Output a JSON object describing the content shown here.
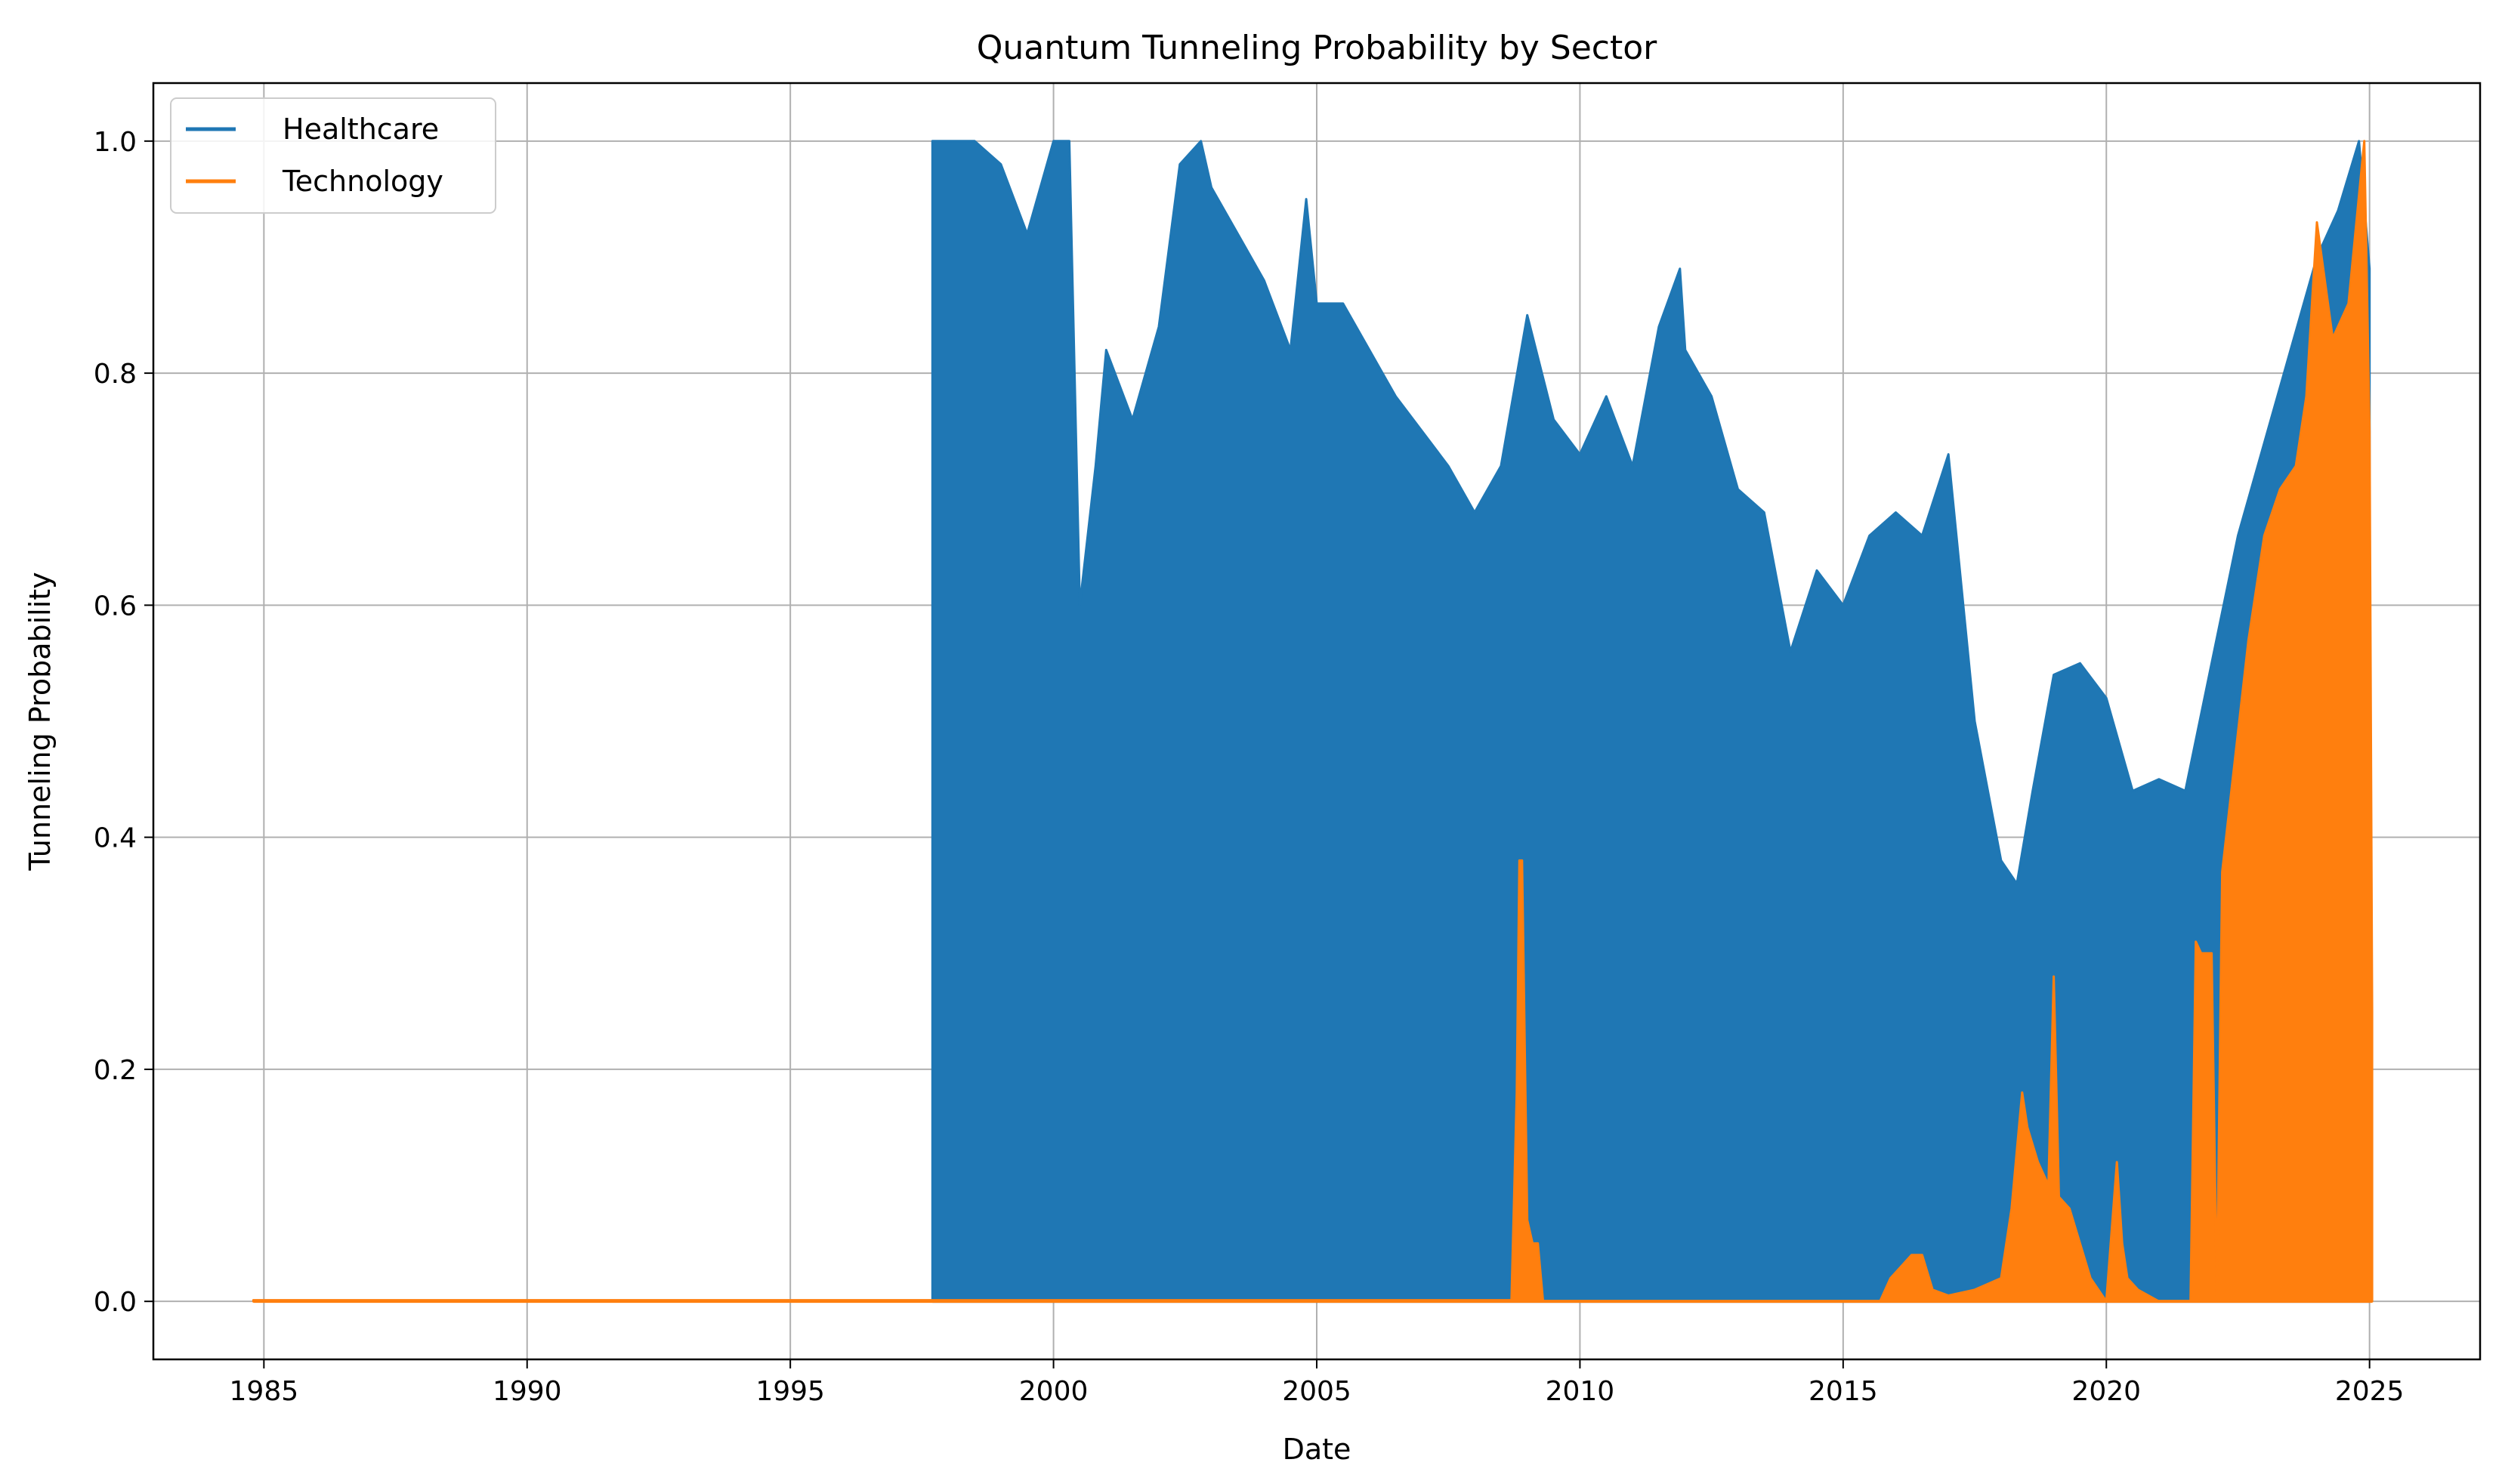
{
  "chart_data": {
    "type": "line",
    "title": "Quantum Tunneling Probability by Sector",
    "xlabel": "Date",
    "ylabel": "Tunneling Probability",
    "xlim": [
      1982.9,
      2027.1
    ],
    "ylim": [
      -0.05,
      1.05
    ],
    "x_ticks": [
      1985,
      1990,
      1995,
      2000,
      2005,
      2010,
      2015,
      2020,
      2025
    ],
    "y_ticks": [
      0.0,
      0.2,
      0.4,
      0.6,
      0.8,
      1.0
    ],
    "y_tick_labels": [
      "0.0",
      "0.2",
      "0.4",
      "0.6",
      "0.8",
      "1.0"
    ],
    "grid": true,
    "legend_position": "upper-left",
    "series": [
      {
        "name": "Healthcare",
        "color": "#1f77b4",
        "render": "band",
        "x": [
          1997.7,
          1998.0,
          1998.5,
          1999.0,
          1999.5,
          2000.0,
          2000.3,
          2000.5,
          2000.8,
          2001.0,
          2001.5,
          2002.0,
          2002.4,
          2002.8,
          2003.0,
          2003.5,
          2004.0,
          2004.5,
          2004.8,
          2005.0,
          2005.5,
          2006.0,
          2006.5,
          2007.0,
          2007.5,
          2008.0,
          2008.5,
          2009.0,
          2009.5,
          2010.0,
          2010.5,
          2011.0,
          2011.5,
          2011.9,
          2012.0,
          2012.5,
          2013.0,
          2013.5,
          2014.0,
          2014.5,
          2015.0,
          2015.5,
          2016.0,
          2016.5,
          2017.0,
          2017.5,
          2018.0,
          2018.3,
          2018.6,
          2019.0,
          2019.5,
          2020.0,
          2020.5,
          2021.0,
          2021.5,
          2022.0,
          2022.5,
          2023.0,
          2023.5,
          2024.0,
          2024.4,
          2024.8,
          2025.0
        ],
        "high": [
          1.0,
          1.0,
          1.0,
          0.98,
          0.92,
          1.0,
          1.0,
          0.6,
          0.72,
          0.82,
          0.76,
          0.84,
          0.98,
          1.0,
          0.96,
          0.92,
          0.88,
          0.82,
          0.95,
          0.86,
          0.86,
          0.82,
          0.78,
          0.75,
          0.72,
          0.68,
          0.72,
          0.85,
          0.76,
          0.73,
          0.78,
          0.72,
          0.84,
          0.89,
          0.82,
          0.78,
          0.7,
          0.68,
          0.56,
          0.63,
          0.6,
          0.66,
          0.68,
          0.66,
          0.73,
          0.5,
          0.38,
          0.36,
          0.44,
          0.54,
          0.55,
          0.52,
          0.44,
          0.45,
          0.44,
          0.55,
          0.66,
          0.74,
          0.82,
          0.9,
          0.94,
          1.0,
          0.89
        ]
      },
      {
        "name": "Technology",
        "color": "#ff7f0e",
        "render": "band",
        "x": [
          1984.8,
          2008.7,
          2008.8,
          2008.85,
          2008.9,
          2009.0,
          2009.1,
          2009.2,
          2009.3,
          2015.7,
          2015.9,
          2016.1,
          2016.3,
          2016.5,
          2016.7,
          2017.0,
          2017.5,
          2018.0,
          2018.2,
          2018.4,
          2018.5,
          2018.7,
          2018.9,
          2019.0,
          2019.1,
          2019.3,
          2019.5,
          2019.7,
          2020.0,
          2020.2,
          2020.3,
          2020.4,
          2020.6,
          2021.0,
          2021.6,
          2021.7,
          2021.8,
          2022.0,
          2022.1,
          2022.2,
          2022.4,
          2022.7,
          2023.0,
          2023.3,
          2023.6,
          2023.8,
          2024.0,
          2024.3,
          2024.6,
          2024.9,
          2025.0,
          2025.05
        ],
        "high": [
          0.001,
          0.001,
          0.18,
          0.38,
          0.38,
          0.07,
          0.05,
          0.05,
          0.0,
          0.0,
          0.02,
          0.03,
          0.04,
          0.04,
          0.01,
          0.005,
          0.01,
          0.02,
          0.08,
          0.18,
          0.15,
          0.12,
          0.1,
          0.28,
          0.09,
          0.08,
          0.05,
          0.02,
          0.0,
          0.12,
          0.05,
          0.02,
          0.01,
          0.0,
          0.0,
          0.31,
          0.3,
          0.3,
          0.0,
          0.37,
          0.45,
          0.57,
          0.66,
          0.7,
          0.72,
          0.78,
          0.93,
          0.83,
          0.86,
          1.0,
          0.75,
          0.25
        ]
      }
    ]
  }
}
